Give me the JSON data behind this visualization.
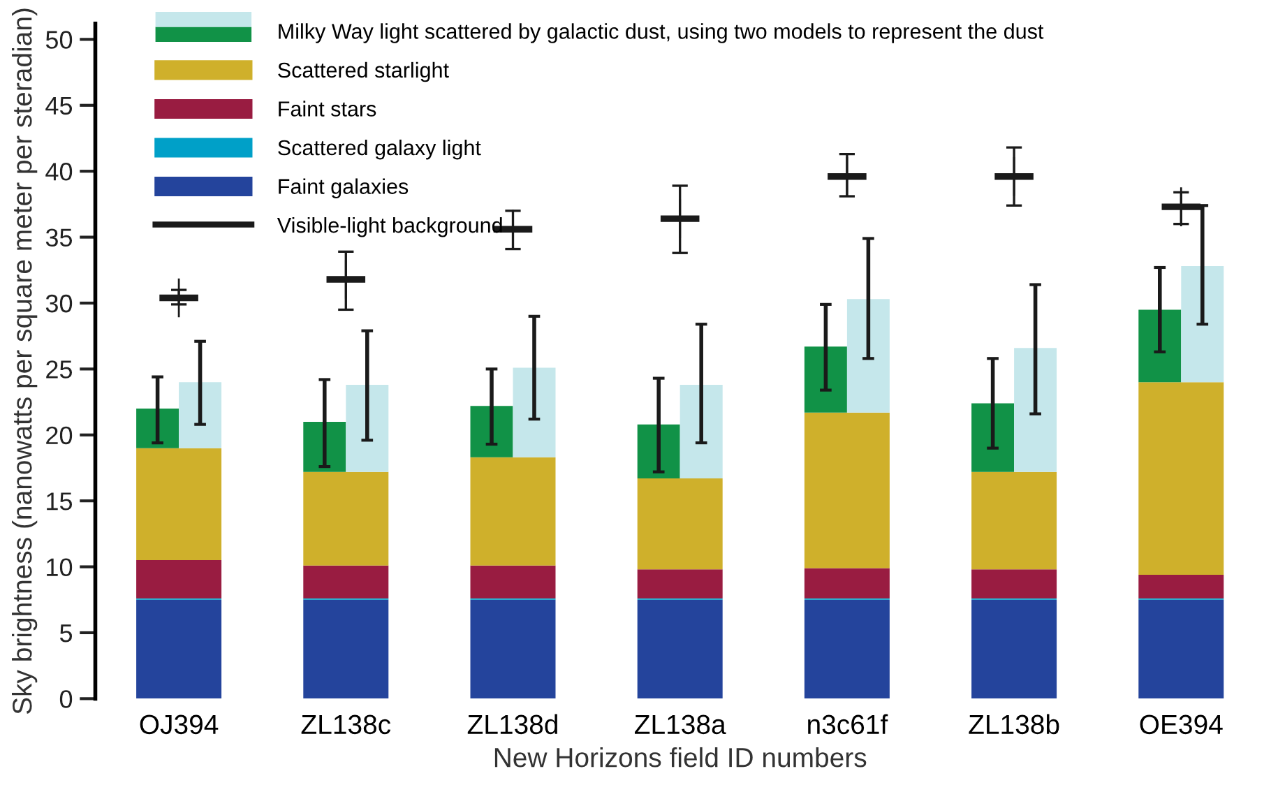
{
  "chart_data": {
    "type": "bar",
    "xlabel": "New Horizons field ID numbers",
    "ylabel": "Sky brightness (nanowatts per square meter per steradian)",
    "categories": [
      "OJ394",
      "ZL138c",
      "ZL138d",
      "ZL138a",
      "n3c61f",
      "ZL138b",
      "OE394"
    ],
    "ylim": [
      0,
      51.2
    ],
    "yticks": [
      0,
      5,
      10,
      15,
      20,
      25,
      30,
      35,
      40,
      45,
      50
    ],
    "grid": false,
    "legend": "top left",
    "series": [
      {
        "name": "Faint galaxies",
        "color": "#24449c",
        "base": [
          0,
          0,
          0,
          0,
          0,
          0,
          0
        ],
        "values": [
          7.5,
          7.5,
          7.5,
          7.5,
          7.5,
          7.5,
          7.5
        ]
      },
      {
        "name": "Scattered galaxy light",
        "color": "#00a0c8",
        "base": [
          7.5,
          7.5,
          7.5,
          7.5,
          7.5,
          7.5,
          7.5
        ],
        "values": [
          0.1,
          0.1,
          0.1,
          0.1,
          0.1,
          0.1,
          0.1
        ]
      },
      {
        "name": "Faint stars",
        "color": "#991c41",
        "base": [
          7.6,
          7.6,
          7.6,
          7.6,
          7.6,
          7.6,
          7.6
        ],
        "values": [
          2.9,
          2.5,
          2.5,
          2.2,
          2.3,
          2.2,
          1.8
        ]
      },
      {
        "name": "Scattered starlight",
        "color": "#cfb02b",
        "base": [
          10.5,
          10.1,
          10.1,
          9.8,
          9.9,
          9.8,
          9.4
        ],
        "values": [
          8.5,
          7.1,
          8.2,
          6.9,
          11.8,
          7.4,
          14.6
        ]
      },
      {
        "name": "Milky Way light scattered by galactic dust, using two models to represent the dust",
        "color": "#119247",
        "base": [
          19.0,
          17.2,
          18.3,
          16.7,
          21.7,
          17.2,
          24.0
        ],
        "values": [
          3.0,
          3.8,
          3.9,
          4.1,
          5.0,
          5.2,
          5.5
        ],
        "errors": [
          [
            19.4,
            24.4
          ],
          [
            17.6,
            24.2
          ],
          [
            19.3,
            25.0
          ],
          [
            17.2,
            24.3
          ],
          [
            23.4,
            29.9
          ],
          [
            19.0,
            25.8
          ],
          [
            26.3,
            32.7
          ]
        ]
      },
      {
        "color": "#c5e7eb",
        "base": [
          19.0,
          17.2,
          18.3,
          16.7,
          21.7,
          17.2,
          24.0
        ],
        "values": [
          5.0,
          6.6,
          6.8,
          7.1,
          8.6,
          9.4,
          8.8
        ],
        "errors": [
          [
            20.8,
            27.1
          ],
          [
            19.6,
            27.9
          ],
          [
            21.2,
            29.0
          ],
          [
            19.4,
            28.4
          ],
          [
            25.8,
            34.9
          ],
          [
            21.6,
            31.4
          ],
          [
            28.4,
            37.4
          ]
        ]
      },
      {
        "name": "Visible-light background",
        "type": "scatter",
        "color": "#1a1a1a",
        "values": [
          30.4,
          31.8,
          35.6,
          36.4,
          39.6,
          39.6,
          37.3
        ],
        "errors": [
          [
            29.9,
            31.0
          ],
          [
            29.5,
            33.9
          ],
          [
            34.1,
            37.0
          ],
          [
            33.8,
            38.9
          ],
          [
            38.1,
            41.3
          ],
          [
            37.4,
            41.8
          ],
          [
            36.0,
            38.4
          ]
        ]
      }
    ]
  }
}
